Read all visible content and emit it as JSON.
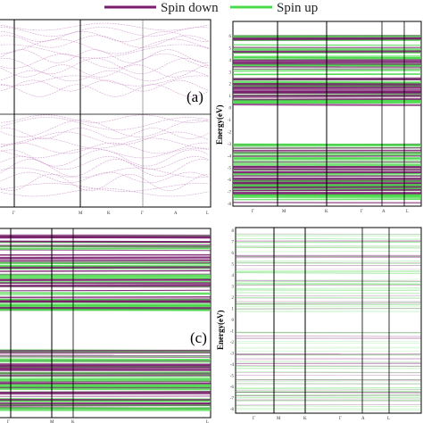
{
  "legend": {
    "spin_down": {
      "label": "Spin down",
      "color": "#7a1d6e"
    },
    "spin_up": {
      "label": "Spin up",
      "color": "#4cd94c"
    }
  },
  "panels": [
    {
      "id": "a",
      "label": "(a)",
      "ylabel": "",
      "x_ticks": [
        "Γ",
        "M",
        "K",
        "Γ",
        "A",
        "L"
      ]
    },
    {
      "id": "b",
      "label": "",
      "ylabel": "Energy(eV)",
      "y_ticks": [
        "6",
        "5",
        "4",
        "3",
        "2",
        "1",
        "0",
        "-1",
        "-2",
        "-3",
        "-4",
        "-5",
        "-6",
        "-7",
        "-8"
      ],
      "x_ticks": [
        "Γ",
        "M",
        "K",
        "Γ",
        "A",
        "L"
      ]
    },
    {
      "id": "c",
      "label": "(c)",
      "ylabel": "",
      "x_ticks": [
        "Γ",
        "M",
        "K",
        "Γ",
        "A",
        "L"
      ]
    },
    {
      "id": "d",
      "label": "",
      "ylabel": "Energy(eV)",
      "y_ticks": [
        "8",
        "7",
        "6",
        "5",
        "4",
        "3",
        "2",
        "1",
        "0",
        "-1",
        "-2",
        "-3",
        "-4",
        "-5",
        "-6",
        "-7",
        "-8"
      ],
      "x_ticks": [
        "Γ",
        "M",
        "K",
        "Γ",
        "A",
        "L"
      ]
    }
  ],
  "chart_data": [
    {
      "type": "line",
      "panel": "a",
      "title": "",
      "series": [
        {
          "name": "Spin down",
          "color": "#c98ac6"
        }
      ],
      "bands_eV": {
        "conduction": [
          4.8,
          5.2,
          5.6,
          6.0,
          6.4,
          6.8
        ],
        "valence": [
          -0.6,
          -1.2,
          -1.8,
          -2.4,
          -3.0,
          -3.6
        ]
      },
      "gap_edges_eV": [
        4.6,
        -0.3
      ]
    },
    {
      "type": "line",
      "panel": "b",
      "series": [
        {
          "name": "Spin down",
          "color": "#7a1d6e"
        },
        {
          "name": "Spin up",
          "color": "#4cd94c"
        }
      ],
      "ylim": [
        -8,
        6
      ],
      "gap_edges_eV": [
        1.0,
        -1.0
      ]
    },
    {
      "type": "line",
      "panel": "c",
      "series": [
        {
          "name": "Spin down",
          "color": "#7a1d6e"
        },
        {
          "name": "Spin up",
          "color": "#4cd94c"
        }
      ],
      "gap_edges_eV": [
        1.0,
        -1.0
      ]
    },
    {
      "type": "line",
      "panel": "d",
      "series": [
        {
          "name": "Spin down",
          "color": "#7a1d6e"
        },
        {
          "name": "Spin up",
          "color": "#4cd94c"
        }
      ],
      "ylim": [
        -8,
        8
      ],
      "gap_edges_eV": [
        1.0,
        -0.4
      ]
    }
  ]
}
